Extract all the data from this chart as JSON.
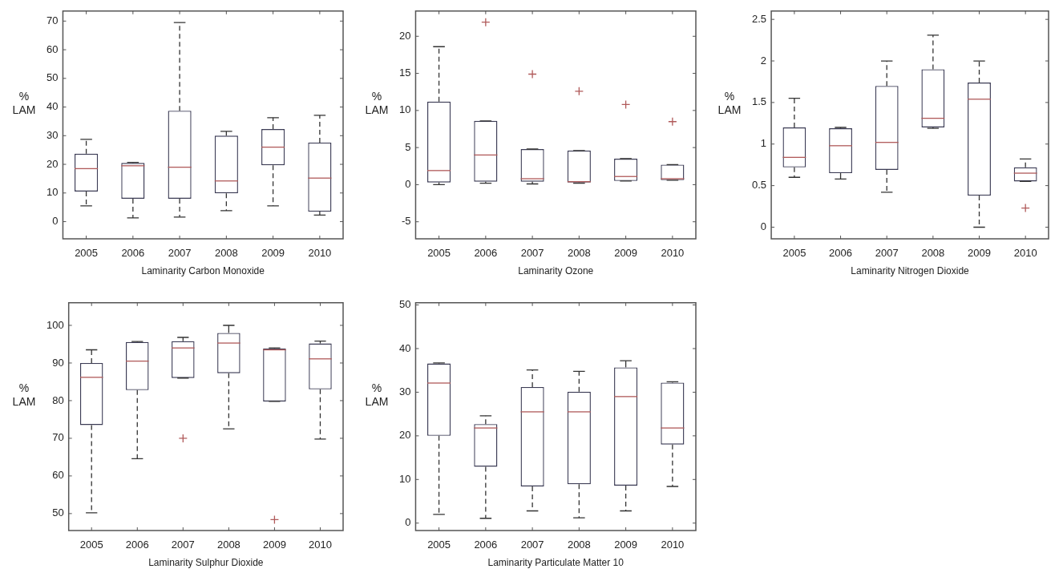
{
  "chart_data": [
    {
      "type": "box",
      "xlabel": "Laminarity Carbon Monoxide",
      "ylabel": "% LAM",
      "categories": [
        "2005",
        "2006",
        "2007",
        "2008",
        "2009",
        "2010"
      ],
      "ylim": [
        -6,
        73.5
      ],
      "yticks": [
        0,
        10,
        20,
        30,
        40,
        50,
        60,
        70
      ],
      "marker": "cross",
      "boxes": [
        {
          "low": 5.5,
          "q1": 10.5,
          "median": 18.5,
          "q3": 23.7,
          "high": 28.7
        },
        {
          "low": 1.3,
          "q1": 8,
          "median": 19.5,
          "q3": 20.5,
          "high": 20.7
        },
        {
          "low": 1.6,
          "q1": 8,
          "median": 19,
          "q3": 38.7,
          "high": 69.5
        },
        {
          "low": 3.8,
          "q1": 9.9,
          "median": 14.2,
          "q3": 30,
          "high": 31.5
        },
        {
          "low": 5.5,
          "q1": 19.7,
          "median": 26,
          "q3": 32.3,
          "high": 36.3
        },
        {
          "low": 2.3,
          "q1": 3.5,
          "median": 15.2,
          "q3": 27.6,
          "high": 37.1
        }
      ]
    },
    {
      "type": "box",
      "xlabel": "Laminarity Ozone",
      "ylabel": "% LAM",
      "categories": [
        "2005",
        "2006",
        "2007",
        "2008",
        "2009",
        "2010"
      ],
      "ylim": [
        -7.3,
        23.4
      ],
      "yticks": [
        -5,
        0,
        5,
        10,
        15,
        20
      ],
      "marker": "cross",
      "boxes": [
        {
          "low": 0,
          "q1": 0.3,
          "median": 1.9,
          "q3": 11.2,
          "high": 18.6
        },
        {
          "low": 0.2,
          "q1": 0.4,
          "median": 4,
          "q3": 8.6,
          "high": 8.6,
          "outliers": [
            21.9
          ]
        },
        {
          "low": 0.1,
          "q1": 0.4,
          "median": 0.8,
          "q3": 4.8,
          "high": 4.8,
          "outliers": [
            14.9
          ]
        },
        {
          "low": 0.2,
          "q1": 0.3,
          "median": 0.4,
          "q3": 4.6,
          "high": 4.6,
          "outliers": [
            12.6
          ]
        },
        {
          "low": 0.5,
          "q1": 0.5,
          "median": 1.1,
          "q3": 3.5,
          "high": 3.5,
          "outliers": [
            10.8
          ]
        },
        {
          "low": 0.6,
          "q1": 0.6,
          "median": 0.8,
          "q3": 2.7,
          "high": 2.7,
          "outliers": [
            8.5
          ]
        }
      ]
    },
    {
      "type": "box",
      "xlabel": "Laminarity Nitrogen Dioxide",
      "ylabel": "% LAM",
      "categories": [
        "2005",
        "2006",
        "2007",
        "2008",
        "2009",
        "2010"
      ],
      "ylim": [
        -0.14,
        2.6
      ],
      "yticks": [
        0,
        0.5,
        1,
        1.5,
        2,
        2.5
      ],
      "marker": "cross",
      "boxes": [
        {
          "low": 0.6,
          "q1": 0.72,
          "median": 0.84,
          "q3": 1.2,
          "high": 1.55
        },
        {
          "low": 0.58,
          "q1": 0.65,
          "median": 0.98,
          "q3": 1.19,
          "high": 1.2
        },
        {
          "low": 0.42,
          "q1": 0.69,
          "median": 1.02,
          "q3": 1.7,
          "high": 2
        },
        {
          "low": 1.19,
          "q1": 1.2,
          "median": 1.31,
          "q3": 1.9,
          "high": 2.31
        },
        {
          "low": 0,
          "q1": 0.38,
          "median": 1.54,
          "q3": 1.74,
          "high": 2
        },
        {
          "low": 0.55,
          "q1": 0.55,
          "median": 0.65,
          "q3": 0.72,
          "high": 0.82,
          "outliers": [
            0.23
          ]
        }
      ]
    },
    {
      "type": "box",
      "xlabel": "Laminarity Sulphur Dioxide",
      "ylabel": "% LAM",
      "categories": [
        "2005",
        "2006",
        "2007",
        "2008",
        "2009",
        "2010"
      ],
      "ylim": [
        45.5,
        106
      ],
      "yticks": [
        50,
        60,
        70,
        80,
        90,
        100
      ],
      "marker": "cross",
      "boxes": [
        {
          "low": 50.2,
          "q1": 73.5,
          "median": 86.2,
          "q3": 90,
          "high": 93.5
        },
        {
          "low": 64.6,
          "q1": 82.8,
          "median": 90.5,
          "q3": 95.6,
          "high": 95.7
        },
        {
          "low": 86,
          "q1": 86,
          "median": 94,
          "q3": 95.8,
          "high": 96.8,
          "outliers": [
            70
          ]
        },
        {
          "low": 72.5,
          "q1": 87.3,
          "median": 95.3,
          "q3": 98,
          "high": 100
        },
        {
          "low": 79.8,
          "q1": 79.8,
          "median": 93.5,
          "q3": 93.9,
          "high": 94,
          "outliers": [
            48.4
          ]
        },
        {
          "low": 69.8,
          "q1": 83,
          "median": 91.1,
          "q3": 95.2,
          "high": 95.8
        }
      ]
    },
    {
      "type": "box",
      "xlabel": "Laminarity Particulate Matter 10",
      "ylabel": "% LAM",
      "categories": [
        "2005",
        "2006",
        "2007",
        "2008",
        "2009",
        "2010"
      ],
      "ylim": [
        -1.7,
        50.5
      ],
      "yticks": [
        0,
        10,
        20,
        30,
        40,
        50
      ],
      "marker": "cross",
      "boxes": [
        {
          "low": 2,
          "q1": 20,
          "median": 32.1,
          "q3": 36.6,
          "high": 36.7
        },
        {
          "low": 1.1,
          "q1": 12.9,
          "median": 21.8,
          "q3": 22.7,
          "high": 24.6
        },
        {
          "low": 2.8,
          "q1": 8.4,
          "median": 25.5,
          "q3": 31.2,
          "high": 35.1
        },
        {
          "low": 1.2,
          "q1": 8.9,
          "median": 25.5,
          "q3": 30.1,
          "high": 34.8
        },
        {
          "low": 2.8,
          "q1": 8.6,
          "median": 29,
          "q3": 35.7,
          "high": 37.2
        },
        {
          "low": 8.4,
          "q1": 18,
          "median": 21.8,
          "q3": 32.2,
          "high": 32.4
        }
      ]
    }
  ]
}
